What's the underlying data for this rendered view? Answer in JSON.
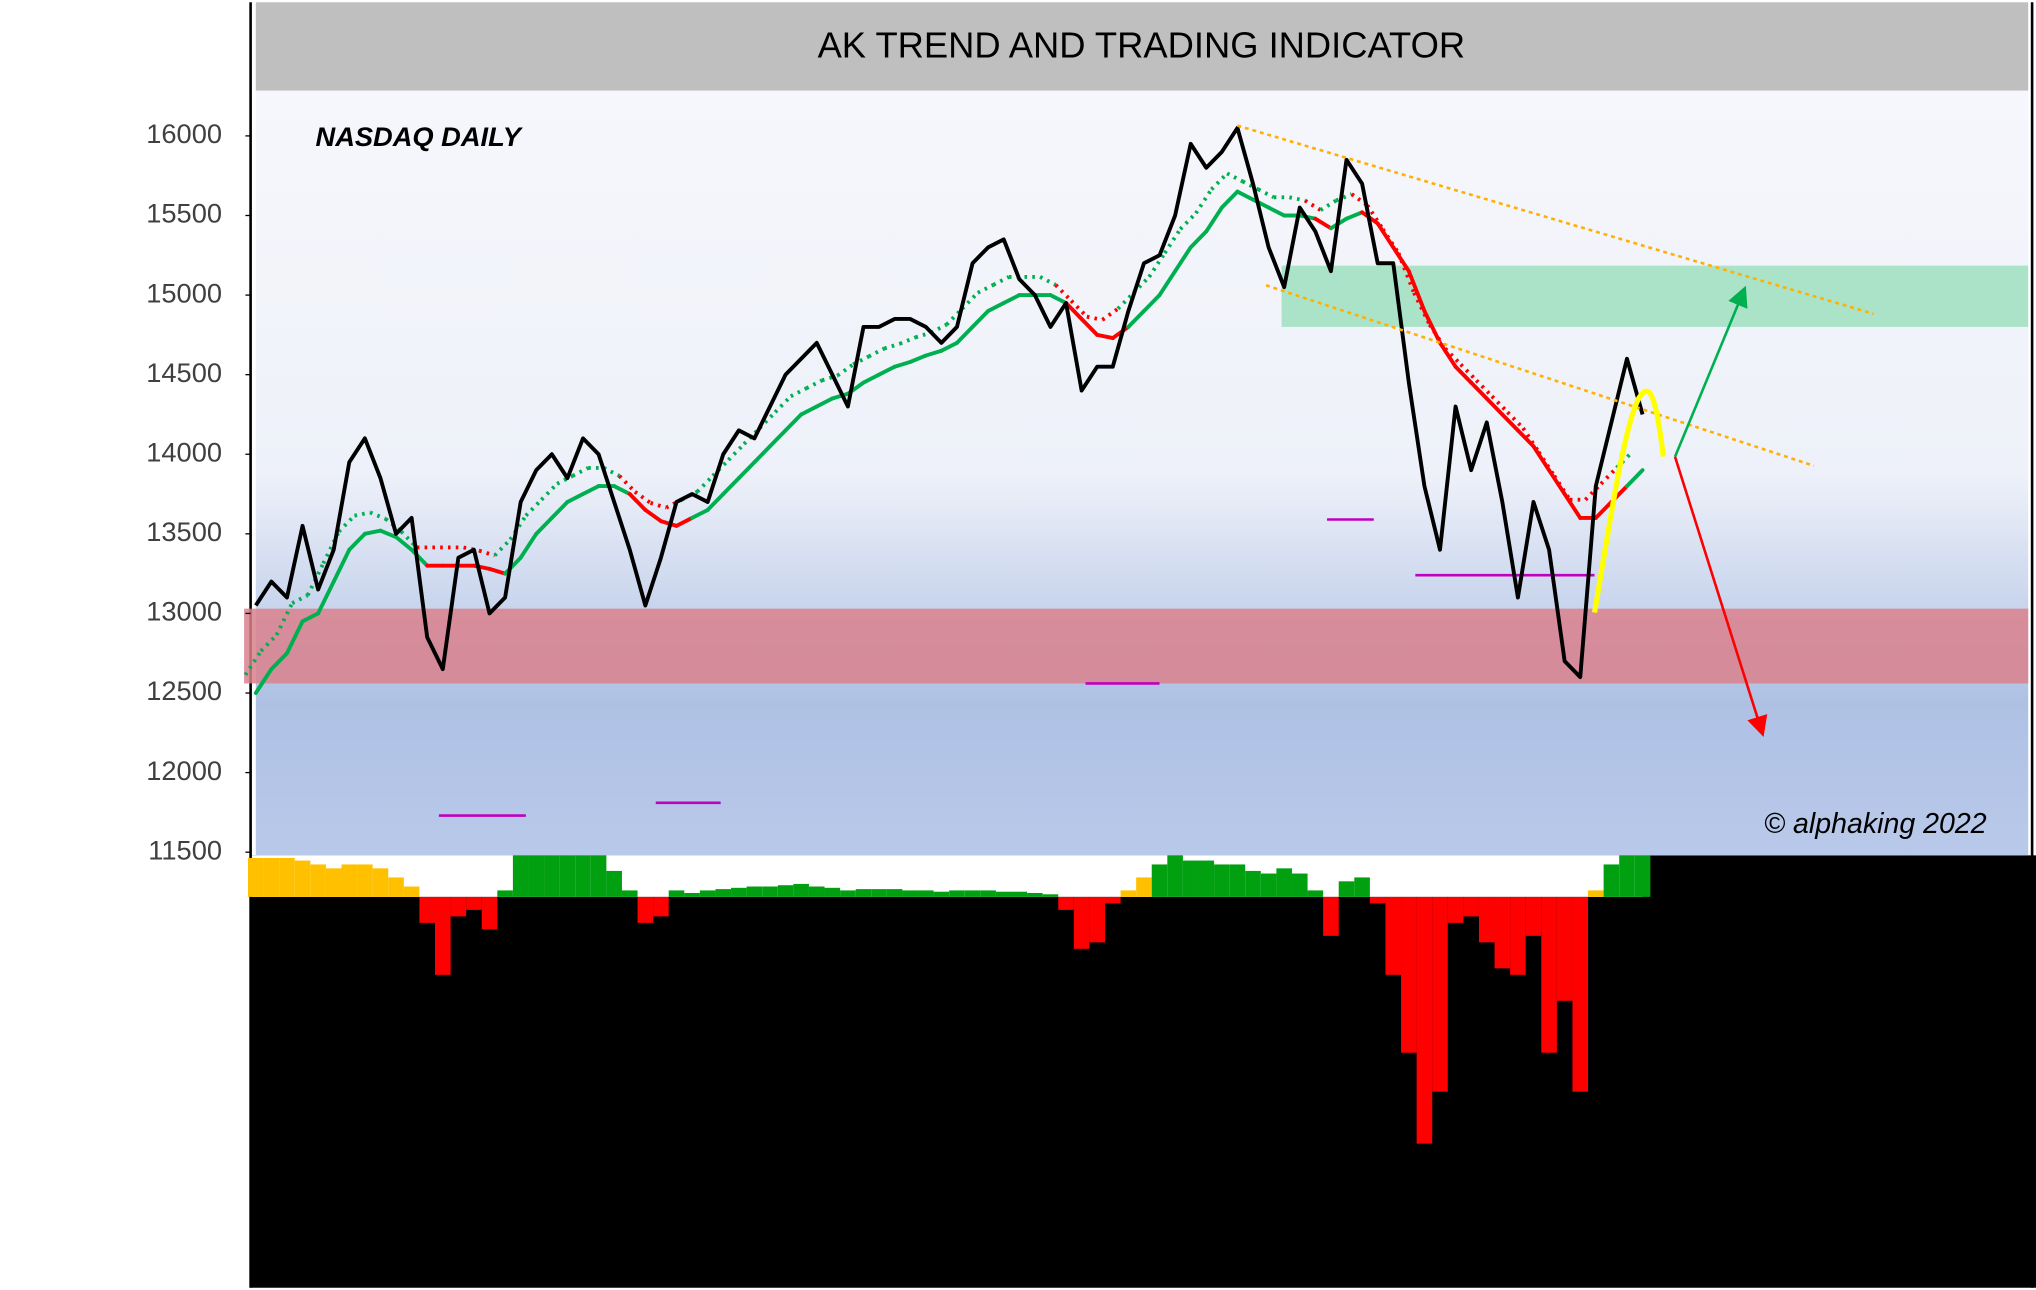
{
  "chart_data": {
    "type": "line",
    "title": "AK TREND AND TRADING INDICATOR",
    "subtitle": "NASDAQ DAILY",
    "annotation": "© alphaking 2022",
    "ylim": [
      11480,
      16285
    ],
    "yticks": [
      11500,
      12000,
      12500,
      13000,
      13500,
      14000,
      14500,
      15000,
      15500,
      16000
    ],
    "series": [
      {
        "color": "#000000",
        "values": [
          13050,
          13200,
          13100,
          13550,
          13150,
          13400,
          13950,
          14100,
          13850,
          13500,
          13600,
          12850,
          12650,
          13350,
          13400,
          13000,
          13100,
          13700,
          13900,
          14000,
          13850,
          14100,
          14000,
          13700,
          13400,
          13050,
          13350,
          13700,
          13750,
          13700,
          14000,
          14150,
          14100,
          14300,
          14500,
          14600,
          14700,
          14500,
          14300,
          14800,
          14800,
          14850,
          14850,
          14800,
          14700,
          14800,
          15200,
          15300,
          15350,
          15100,
          15000,
          14800,
          14950,
          14400,
          14550,
          14550,
          14900,
          15200,
          15250,
          15500,
          15950,
          15800,
          15900,
          16050,
          15700,
          15300,
          15050,
          15550,
          15400,
          15150,
          15850,
          15700,
          15200,
          15200,
          14450,
          13800,
          13400,
          14300,
          13900,
          14200,
          13700,
          13100,
          13700,
          13400,
          12700,
          12600,
          13800,
          14200,
          14600,
          14250
        ]
      },
      {
        "color": "#00b050",
        "down_color": "#ff0000",
        "down_segments": [
          [
            11,
            16
          ],
          [
            24,
            28
          ],
          [
            52,
            56
          ],
          [
            68,
            69
          ],
          [
            71,
            88
          ]
        ],
        "values": [
          12500,
          12650,
          12750,
          12950,
          13000,
          13200,
          13400,
          13500,
          13520,
          13480,
          13400,
          13300,
          13300,
          13300,
          13300,
          13280,
          13250,
          13350,
          13500,
          13600,
          13700,
          13750,
          13800,
          13800,
          13750,
          13650,
          13580,
          13550,
          13600,
          13650,
          13750,
          13850,
          13950,
          14050,
          14150,
          14250,
          14300,
          14350,
          14380,
          14450,
          14500,
          14550,
          14580,
          14620,
          14650,
          14700,
          14800,
          14900,
          14950,
          15000,
          15000,
          15000,
          14950,
          14850,
          14750,
          14730,
          14800,
          14900,
          15000,
          15150,
          15300,
          15400,
          15550,
          15650,
          15600,
          15550,
          15500,
          15500,
          15480,
          15420,
          15480,
          15520,
          15450,
          15300,
          15150,
          14900,
          14700,
          14550,
          14450,
          14350,
          14250,
          14150,
          14050,
          13900,
          13750,
          13600,
          13600,
          13700,
          13800,
          13900
        ]
      }
    ],
    "oscillator": {
      "positive_color": "#00a010",
      "caution_color": "#ffc000",
      "negative_color": "#ff0000",
      "caution_segments": [
        [
          0,
          10
        ],
        [
          56,
          57
        ],
        [
          84,
          86
        ]
      ],
      "values": [
        30,
        30,
        30,
        28,
        25,
        22,
        25,
        25,
        22,
        15,
        8,
        -20,
        -60,
        -15,
        -10,
        -25,
        5,
        32,
        32,
        32,
        32,
        32,
        32,
        20,
        5,
        -20,
        -15,
        5,
        3,
        5,
        6,
        7,
        8,
        8,
        9,
        10,
        8,
        7,
        5,
        6,
        6,
        6,
        5,
        5,
        4,
        5,
        5,
        5,
        4,
        4,
        3,
        2,
        -10,
        -40,
        -35,
        -5,
        5,
        15,
        25,
        32,
        28,
        28,
        25,
        25,
        20,
        18,
        22,
        18,
        5,
        -30,
        12,
        15,
        -5,
        -60,
        -120,
        -190,
        -150,
        -20,
        -15,
        -35,
        -55,
        -60,
        -30,
        -120,
        -80,
        -150,
        5,
        25,
        32,
        32
      ]
    },
    "zones": [
      {
        "color": "#d9808c",
        "range": [
          12560,
          13030
        ]
      },
      {
        "color": "#9fdfbf",
        "range": [
          14800,
          15185
        ]
      }
    ],
    "levels": {
      "color": "#c000c0",
      "values": [
        13590,
        13240,
        12560,
        11810,
        11730
      ]
    }
  }
}
